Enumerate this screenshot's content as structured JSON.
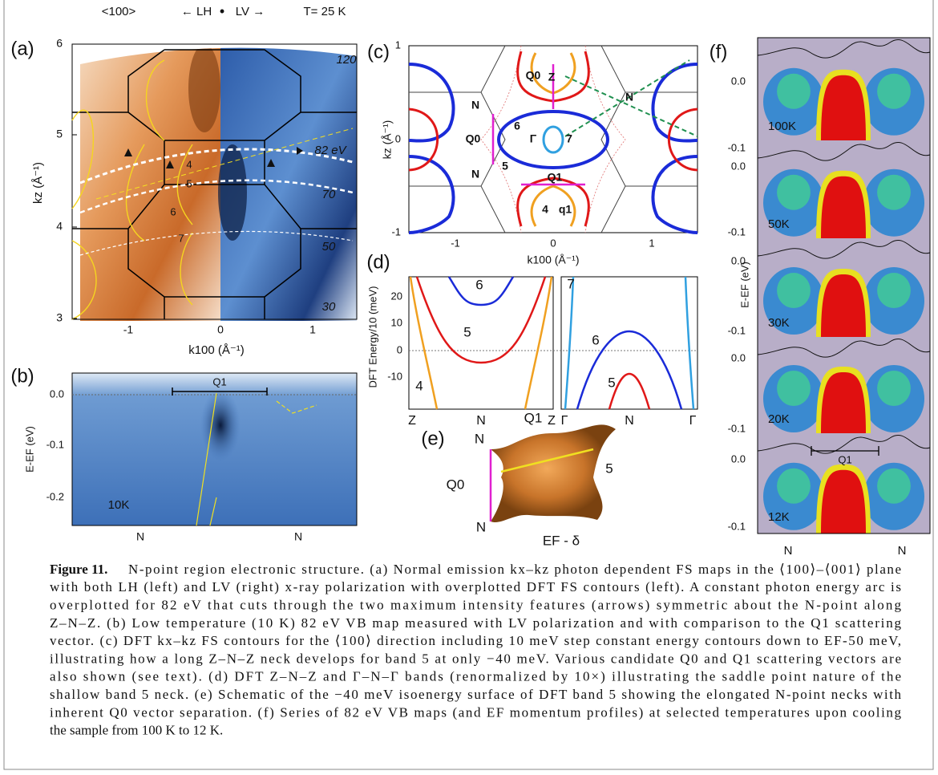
{
  "panels": {
    "a": {
      "label": "(a)",
      "header": {
        "direction": "<100>",
        "lh": "← LH",
        "dot": "•",
        "lv": "LV →",
        "temp": "T= 25 K"
      },
      "yticks": [
        "6",
        "5",
        "4",
        "3"
      ],
      "xticks": [
        "-1",
        "0",
        "1"
      ],
      "ylabel": "kz (Å⁻¹)",
      "xlabel": "k100 (Å⁻¹)",
      "arcs": [
        "120",
        "82 eV",
        "70",
        "50",
        "30"
      ],
      "bands": [
        "4",
        "5",
        "6",
        "7"
      ]
    },
    "b": {
      "label": "(b)",
      "yticks": [
        "0.0",
        "-0.1",
        "-0.2"
      ],
      "ylabel": "E-EF (eV)",
      "vector": "Q1",
      "temp": "10K",
      "points": [
        "N",
        "N"
      ]
    },
    "c": {
      "label": "(c)",
      "yticks": [
        "1",
        "0",
        "-1"
      ],
      "xticks": [
        "-1",
        "0",
        "1"
      ],
      "ylabel": "kz (Å⁻¹)",
      "xlabel": "k100 (Å⁻¹)",
      "annotations": [
        "Q0",
        "Z",
        "N",
        "N",
        "6",
        "Γ",
        "7",
        "Q0",
        "N",
        "5",
        "Q1",
        "4",
        "q1"
      ]
    },
    "d": {
      "label": "(d)",
      "yticks": [
        "20",
        "10",
        "0",
        "-10"
      ],
      "ylabel": "DFT Energy/10 (meV)",
      "left_x": [
        "Z",
        "N",
        "Z"
      ],
      "right_x": [
        "Γ",
        "N",
        "Γ"
      ],
      "left_bands": [
        "6",
        "5",
        "4"
      ],
      "right_bands": [
        "7",
        "6",
        "5"
      ]
    },
    "e": {
      "label": "(e)",
      "annotations": [
        "N",
        "Q1",
        "5",
        "Q0",
        "N",
        "EF - δ"
      ]
    },
    "f": {
      "label": "(f)",
      "ylabel": "E-EF (eV)",
      "tick_top": "0.0",
      "tick_bottom": "-0.1",
      "temps": [
        "100K",
        "50K",
        "30K",
        "20K",
        "12K"
      ],
      "vector": "Q1",
      "points": [
        "N",
        "N"
      ]
    }
  },
  "caption": {
    "label": "Figure 11.",
    "lines": [
      "N-point region electronic structure. (a) Normal emission kx–kz photon dependent FS maps in the ⟨100⟩–⟨001⟩ plane",
      "with both LH (left) and LV (right) x-ray polarization with overplotted DFT FS contours (left). A constant photon energy arc is",
      "overplotted for 82 eV that cuts through the two maximum intensity features (arrows) symmetric about the N-point along",
      "Z–N–Z. (b) Low temperature (10 K) 82 eV VB map measured with LV polarization and with comparison to the Q1 scattering",
      "vector. (c) DFT kx–kz FS contours for the ⟨100⟩ direction including 10 meV step constant energy contours down to EF-50 meV,",
      "illustrating how a long Z–N–Z neck develops for band 5 at only −40 meV. Various candidate Q0 and Q1 scattering vectors are",
      "also shown (see text). (d) DFT Z–N–Z and Γ–N–Γ bands (renormalized by 10×) illustrating the saddle point nature of the",
      "shallow band 5 neck. (e) Schematic of the −40 meV isoenergy surface of DFT band 5 showing the elongated N-point necks with",
      "inherent Q0 vector separation. (f) Series of 82 eV VB maps (and EF momentum profiles) at selected temperatures upon cooling",
      "the sample from 100 K to 12 K."
    ]
  }
}
